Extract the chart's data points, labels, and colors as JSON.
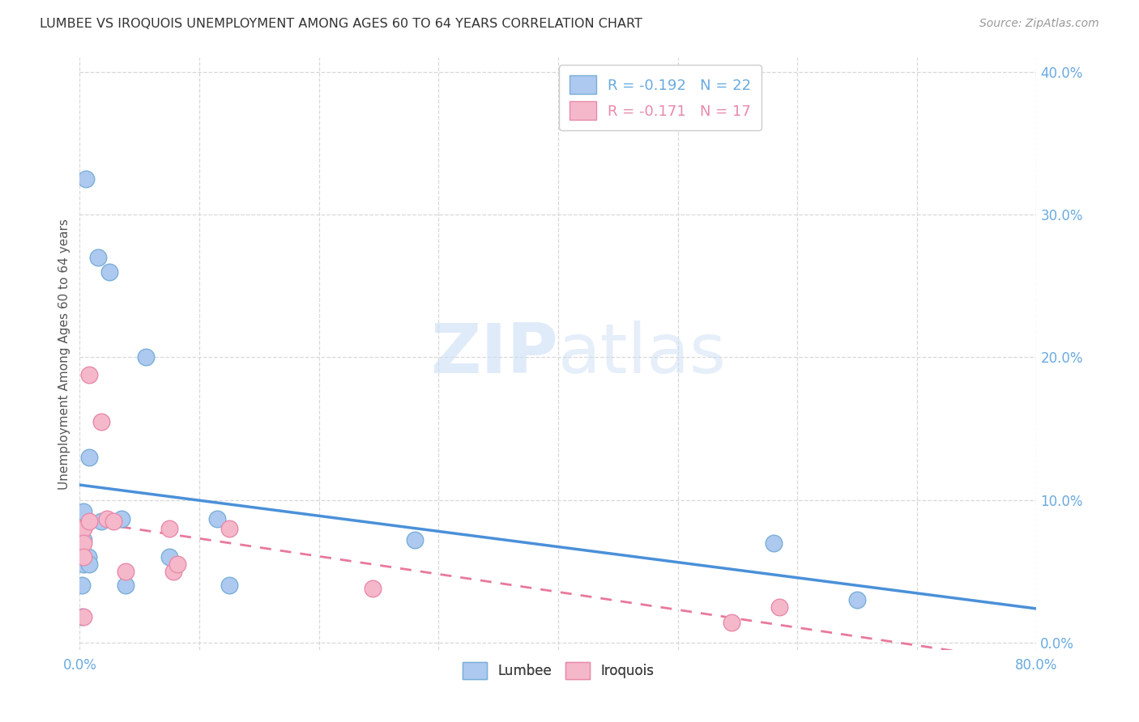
{
  "title": "LUMBEE VS IROQUOIS UNEMPLOYMENT AMONG AGES 60 TO 64 YEARS CORRELATION CHART",
  "source": "Source: ZipAtlas.com",
  "ylabel": "Unemployment Among Ages 60 to 64 years",
  "xlim": [
    0,
    0.8
  ],
  "ylim": [
    -0.005,
    0.41
  ],
  "xticks": [
    0.0,
    0.1,
    0.2,
    0.3,
    0.4,
    0.5,
    0.6,
    0.7,
    0.8
  ],
  "yticks": [
    0.0,
    0.1,
    0.2,
    0.3,
    0.4
  ],
  "lumbee_color": "#adc9ef",
  "lumbee_edge_color": "#7aafd8",
  "iroquois_color": "#f5b8ca",
  "iroquois_edge_color": "#e88aaa",
  "lumbee_line_color": "#4a90d9",
  "iroquois_line_color": "#e8799a",
  "lumbee_R": -0.192,
  "lumbee_N": 22,
  "iroquois_R": -0.171,
  "iroquois_N": 17,
  "lumbee_x": [
    0.005,
    0.015,
    0.025,
    0.008,
    0.003,
    0.003,
    0.002,
    0.007,
    0.003,
    0.008,
    0.002,
    0.002,
    0.018,
    0.035,
    0.038,
    0.055,
    0.075,
    0.115,
    0.125,
    0.28,
    0.58,
    0.65
  ],
  "lumbee_y": [
    0.325,
    0.27,
    0.26,
    0.13,
    0.092,
    0.072,
    0.062,
    0.06,
    0.055,
    0.055,
    0.04,
    0.018,
    0.085,
    0.087,
    0.04,
    0.2,
    0.06,
    0.087,
    0.04,
    0.072,
    0.07,
    0.03
  ],
  "iroquois_x": [
    0.003,
    0.003,
    0.003,
    0.003,
    0.008,
    0.008,
    0.018,
    0.023,
    0.028,
    0.038,
    0.075,
    0.078,
    0.082,
    0.125,
    0.245,
    0.545,
    0.585
  ],
  "iroquois_y": [
    0.08,
    0.07,
    0.06,
    0.018,
    0.188,
    0.085,
    0.155,
    0.087,
    0.085,
    0.05,
    0.08,
    0.05,
    0.055,
    0.08,
    0.038,
    0.014,
    0.025
  ],
  "watermark_zip": "ZIP",
  "watermark_atlas": "atlas",
  "background_color": "#ffffff",
  "grid_color": "#d8d8d8",
  "tick_color": "#6aaae0",
  "title_color": "#333333",
  "source_color": "#999999",
  "ylabel_color": "#555555"
}
